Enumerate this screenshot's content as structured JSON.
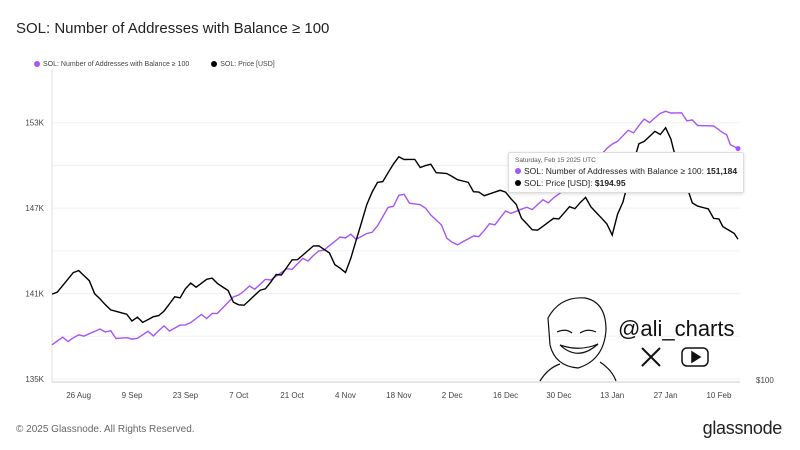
{
  "title": "SOL: Number of Addresses with Balance ≥ 100",
  "footer": "© 2025 Glassnode. All Rights Reserved.",
  "brand": "glassnode",
  "watermark": {
    "handle": "@ali_charts",
    "icons": [
      "x-logo-icon",
      "youtube-icon",
      "sketch-face-avatar"
    ]
  },
  "tooltip": {
    "date": "Saturday, Feb 15 2025 UTC",
    "line1_label": "SOL: Number of Addresses with Balance ≥ 100: ",
    "line1_value": "151,184",
    "line2_label": "SOL: Price [USD]: ",
    "line2_value": "$194.95"
  },
  "chart_data": {
    "type": "line",
    "title": "SOL: Number of Addresses with Balance ≥ 100",
    "legend_position": "top-left",
    "x": [
      "2024-08-19",
      "2024-08-26",
      "2024-09-02",
      "2024-09-09",
      "2024-09-16",
      "2024-09-23",
      "2024-09-30",
      "2024-10-07",
      "2024-10-14",
      "2024-10-21",
      "2024-10-28",
      "2024-11-04",
      "2024-11-11",
      "2024-11-18",
      "2024-11-25",
      "2024-12-02",
      "2024-12-09",
      "2024-12-16",
      "2024-12-23",
      "2024-12-30",
      "2025-01-06",
      "2025-01-13",
      "2025-01-20",
      "2025-01-27",
      "2025-02-03",
      "2025-02-10",
      "2025-02-15"
    ],
    "x_tick_labels": [
      "26 Aug",
      "9 Sep",
      "23 Sep",
      "7 Oct",
      "21 Oct",
      "4 Nov",
      "18 Nov",
      "2 Dec",
      "16 Dec",
      "30 Dec",
      "13 Jan",
      "27 Jan",
      "10 Feb"
    ],
    "y_left": {
      "ticks": [
        "135K",
        "141K",
        "147K",
        "153K"
      ],
      "range": [
        135,
        156
      ]
    },
    "y_right": {
      "ticks": [
        "$100"
      ],
      "range": [
        100,
        310
      ]
    },
    "series": [
      {
        "name": "SOL: Number of Addresses with Balance ≥ 100",
        "axis": "left",
        "unit": "K",
        "color": "#a855f7",
        "values": [
          137.4,
          138.1,
          138.3,
          137.8,
          138.4,
          138.8,
          139.6,
          140.9,
          142.0,
          142.7,
          144.0,
          144.9,
          145.3,
          147.9,
          147.0,
          144.6,
          145.0,
          146.8,
          146.9,
          148.0,
          150.0,
          151.5,
          152.8,
          153.8,
          153.2,
          152.5,
          151.184
        ]
      },
      {
        "name": "SOL: Price [USD]",
        "axis": "right",
        "unit": "USD",
        "color": "#000000",
        "values": [
          157.7,
          173.7,
          150.4,
          139.4,
          143.1,
          161.3,
          168.6,
          150.4,
          161.3,
          181.0,
          190.5,
          172.3,
          227.0,
          251.0,
          245.0,
          237.6,
          227.0,
          227.0,
          201.5,
          208.8,
          223.4,
          197.8,
          259.9,
          270.8,
          219.7,
          208.8,
          194.95
        ]
      }
    ]
  }
}
